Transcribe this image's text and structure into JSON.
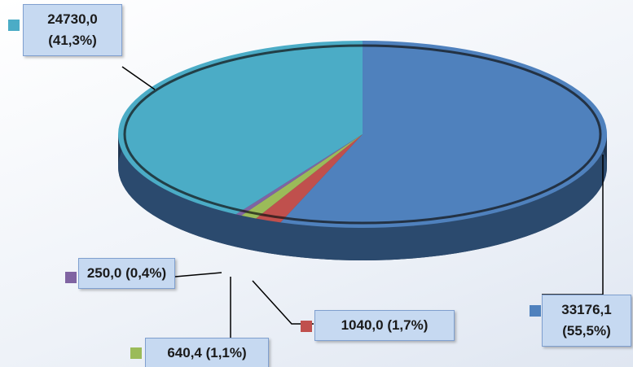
{
  "chart_data": {
    "type": "pie",
    "categories": [
      null,
      null,
      null,
      null,
      null
    ],
    "values": [
      33176.1,
      1040.0,
      640.4,
      250.0,
      24730.0
    ],
    "value_labels": [
      "33176,1 (55,5%)",
      "1040,0 (1,7%)",
      "640,4 (1,1%)",
      "250,0 (0,4%)",
      "24730,0 (41,3%)"
    ],
    "colors": [
      "#4f81bd",
      "#c0504d",
      "#9bbb59",
      "#8064a2",
      "#4bacc6"
    ]
  }
}
